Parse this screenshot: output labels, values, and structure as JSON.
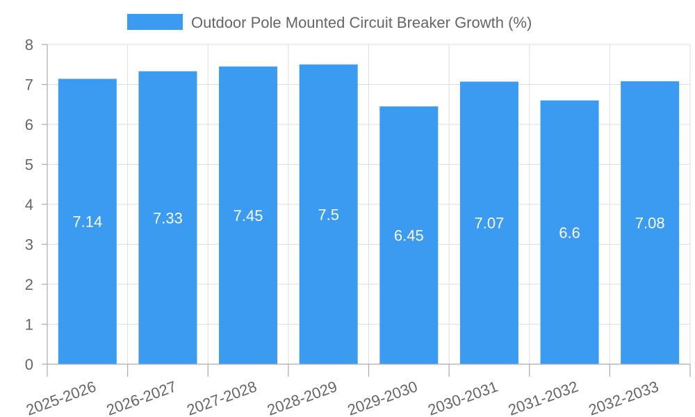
{
  "chart_data": {
    "type": "bar",
    "categories": [
      "2025-2026",
      "2026-2027",
      "2027-2028",
      "2028-2029",
      "2029-2030",
      "2030-2031",
      "2031-2032",
      "2032-2033"
    ],
    "series": [
      {
        "name": "Outdoor Pole Mounted Circuit Breaker Growth (%)",
        "values": [
          7.14,
          7.33,
          7.45,
          7.5,
          6.45,
          7.07,
          6.6,
          7.08
        ],
        "color": "#3a9bf0"
      }
    ],
    "data_labels": [
      "7.14",
      "7.33",
      "7.45",
      "7.5",
      "6.45",
      "7.07",
      "6.6",
      "7.08"
    ],
    "y_ticks": [
      "0",
      "1",
      "2",
      "3",
      "4",
      "5",
      "6",
      "7",
      "8"
    ],
    "ylim": [
      0,
      8
    ],
    "grid": true,
    "legend_position": "top-center",
    "x_tick_rotation_deg": -20
  }
}
